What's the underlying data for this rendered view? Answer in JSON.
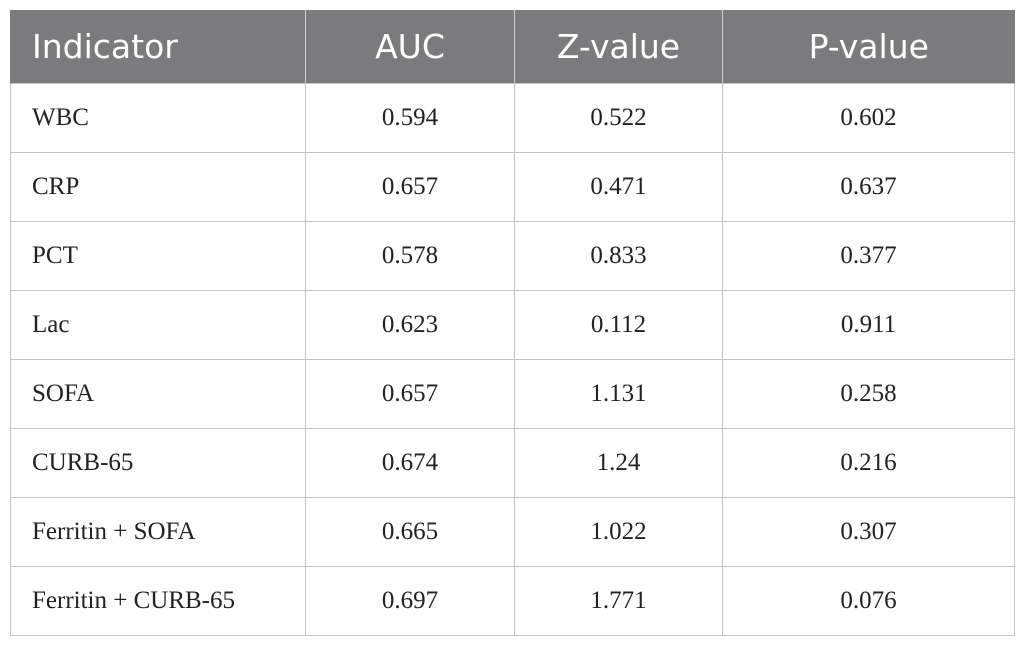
{
  "table": {
    "headers": [
      "Indicator",
      "AUC",
      "Z-value",
      "P-value"
    ],
    "rows": [
      [
        "WBC",
        "0.594",
        "0.522",
        "0.602"
      ],
      [
        "CRP",
        "0.657",
        "0.471",
        "0.637"
      ],
      [
        "PCT",
        "0.578",
        "0.833",
        "0.377"
      ],
      [
        "Lac",
        "0.623",
        "0.112",
        "0.911"
      ],
      [
        "SOFA",
        "0.657",
        "1.131",
        "0.258"
      ],
      [
        "CURB-65",
        "0.674",
        "1.24",
        "0.216"
      ],
      [
        "Ferritin + SOFA",
        "0.665",
        "1.022",
        "0.307"
      ],
      [
        "Ferritin + CURB-65",
        "0.697",
        "1.771",
        "0.076"
      ]
    ]
  },
  "colors": {
    "header_background": "#7b7b7d",
    "header_text": "#ffffff",
    "grid_lines": "#c4c4c4"
  }
}
